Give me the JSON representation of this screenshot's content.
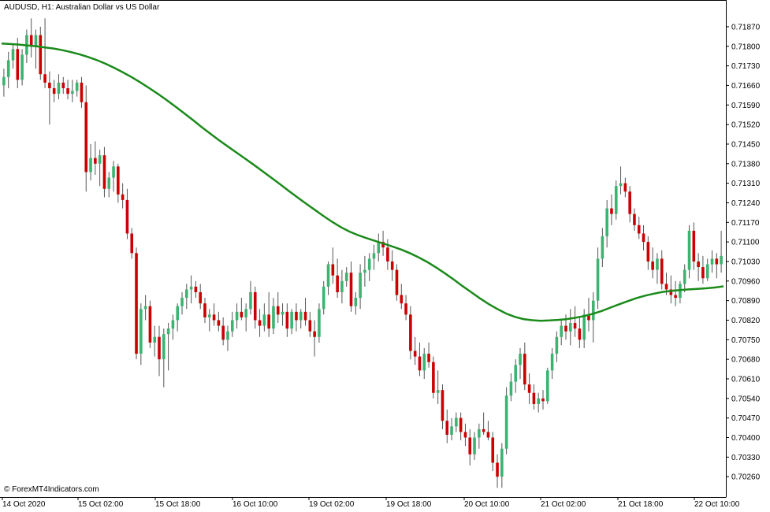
{
  "window": {
    "title": "AUDUSD, H1:  Australian Dollar vs US Dollar",
    "watermark": "© ForexMT4Indicators.com"
  },
  "colors": {
    "background": "#ffffff",
    "bull_candle": "#3cb371",
    "bear_candle": "#cc0000",
    "wick": "#555555",
    "moving_average": "#1a8a1a",
    "frame": "#000000"
  },
  "chart_data": {
    "type": "candlestick",
    "symbol": "AUDUSD",
    "timeframe": "H1",
    "ylim": [
      0.7019,
      0.7196
    ],
    "y_ticks": [
      "0.71870",
      "0.71800",
      "0.71730",
      "0.71660",
      "0.71590",
      "0.71520",
      "0.71450",
      "0.71380",
      "0.71310",
      "0.71240",
      "0.71170",
      "0.71100",
      "0.71030",
      "0.70960",
      "0.70890",
      "0.70820",
      "0.70750",
      "0.70680",
      "0.70610",
      "0.70540",
      "0.70470",
      "0.70400",
      "0.70330",
      "0.70260"
    ],
    "x_ticks": [
      "14 Oct 2020",
      "15 Oct 02:00",
      "15 Oct 18:00",
      "16 Oct 10:00",
      "19 Oct 02:00",
      "19 Oct 18:00",
      "20 Oct 10:00",
      "21 Oct 02:00",
      "21 Oct 18:00",
      "22 Oct 10:00"
    ],
    "candles": [
      [
        0.7166,
        0.7172,
        0.7162,
        0.7169
      ],
      [
        0.7169,
        0.7178,
        0.7165,
        0.7175
      ],
      [
        0.7175,
        0.7181,
        0.7172,
        0.7179
      ],
      [
        0.7179,
        0.7183,
        0.7165,
        0.7168
      ],
      [
        0.7168,
        0.7179,
        0.7166,
        0.7177
      ],
      [
        0.7177,
        0.7186,
        0.7174,
        0.7184
      ],
      [
        0.7184,
        0.719,
        0.7176,
        0.718
      ],
      [
        0.718,
        0.7186,
        0.7172,
        0.7184
      ],
      [
        0.7184,
        0.7187,
        0.7168,
        0.717
      ],
      [
        0.717,
        0.719,
        0.7165,
        0.7167
      ],
      [
        0.7167,
        0.7171,
        0.7152,
        0.7165
      ],
      [
        0.7165,
        0.7168,
        0.716,
        0.7163
      ],
      [
        0.7163,
        0.717,
        0.7161,
        0.7167
      ],
      [
        0.7167,
        0.7169,
        0.7163,
        0.7165
      ],
      [
        0.7165,
        0.7168,
        0.7161,
        0.7163
      ],
      [
        0.7163,
        0.7168,
        0.716,
        0.7164
      ],
      [
        0.7164,
        0.7168,
        0.7162,
        0.7167
      ],
      [
        0.7167,
        0.7169,
        0.7158,
        0.716
      ],
      [
        0.716,
        0.7166,
        0.7128,
        0.7135
      ],
      [
        0.7135,
        0.7145,
        0.7132,
        0.714
      ],
      [
        0.714,
        0.7146,
        0.7134,
        0.7138
      ],
      [
        0.7138,
        0.7143,
        0.713,
        0.7141
      ],
      [
        0.7141,
        0.7144,
        0.7126,
        0.7129
      ],
      [
        0.7129,
        0.7135,
        0.7126,
        0.7133
      ],
      [
        0.7133,
        0.7139,
        0.7128,
        0.7137
      ],
      [
        0.7137,
        0.7138,
        0.7124,
        0.7127
      ],
      [
        0.7127,
        0.7131,
        0.7122,
        0.7125
      ],
      [
        0.7125,
        0.7129,
        0.7111,
        0.7113
      ],
      [
        0.7113,
        0.7115,
        0.7104,
        0.7106
      ],
      [
        0.7106,
        0.7108,
        0.7068,
        0.707
      ],
      [
        0.707,
        0.7088,
        0.7066,
        0.7086
      ],
      [
        0.7086,
        0.7091,
        0.7082,
        0.7087
      ],
      [
        0.7087,
        0.7089,
        0.7072,
        0.7074
      ],
      [
        0.7074,
        0.708,
        0.7069,
        0.7076
      ],
      [
        0.7076,
        0.708,
        0.7062,
        0.7068
      ],
      [
        0.7068,
        0.7079,
        0.7058,
        0.7077
      ],
      [
        0.7077,
        0.7081,
        0.7064,
        0.7079
      ],
      [
        0.7079,
        0.7084,
        0.7075,
        0.7082
      ],
      [
        0.7082,
        0.7088,
        0.7078,
        0.7087
      ],
      [
        0.7087,
        0.7092,
        0.7084,
        0.709
      ],
      [
        0.709,
        0.7095,
        0.7086,
        0.7093
      ],
      [
        0.7093,
        0.7098,
        0.7088,
        0.7094
      ],
      [
        0.7094,
        0.7096,
        0.709,
        0.7092
      ],
      [
        0.7092,
        0.7095,
        0.7086,
        0.7088
      ],
      [
        0.7088,
        0.709,
        0.7081,
        0.7083
      ],
      [
        0.7083,
        0.7086,
        0.7078,
        0.7084
      ],
      [
        0.7084,
        0.7088,
        0.708,
        0.7082
      ],
      [
        0.7082,
        0.7085,
        0.7078,
        0.708
      ],
      [
        0.708,
        0.7083,
        0.7073,
        0.7075
      ],
      [
        0.7075,
        0.708,
        0.7071,
        0.7078
      ],
      [
        0.7078,
        0.7085,
        0.7076,
        0.7082
      ],
      [
        0.7082,
        0.7088,
        0.7079,
        0.7085
      ],
      [
        0.7085,
        0.709,
        0.7082,
        0.7083
      ],
      [
        0.7083,
        0.7088,
        0.7078,
        0.7086
      ],
      [
        0.7086,
        0.7096,
        0.7084,
        0.7092
      ],
      [
        0.7092,
        0.7094,
        0.7079,
        0.7082
      ],
      [
        0.7082,
        0.7086,
        0.7076,
        0.708
      ],
      [
        0.708,
        0.7088,
        0.7078,
        0.7084
      ],
      [
        0.7084,
        0.7092,
        0.7076,
        0.7079
      ],
      [
        0.7079,
        0.709,
        0.7077,
        0.7087
      ],
      [
        0.7087,
        0.7092,
        0.7081,
        0.7084
      ],
      [
        0.7084,
        0.7088,
        0.708,
        0.7085
      ],
      [
        0.7085,
        0.7088,
        0.7076,
        0.7079
      ],
      [
        0.7079,
        0.7086,
        0.7077,
        0.7085
      ],
      [
        0.7085,
        0.7088,
        0.7078,
        0.7082
      ],
      [
        0.7082,
        0.7086,
        0.7079,
        0.7085
      ],
      [
        0.7085,
        0.709,
        0.708,
        0.7082
      ],
      [
        0.7082,
        0.7085,
        0.7076,
        0.7078
      ],
      [
        0.7078,
        0.7082,
        0.7069,
        0.7076
      ],
      [
        0.7076,
        0.7088,
        0.7074,
        0.7086
      ],
      [
        0.7086,
        0.7096,
        0.7084,
        0.7094
      ],
      [
        0.7094,
        0.7103,
        0.7091,
        0.7102
      ],
      [
        0.7102,
        0.7108,
        0.7095,
        0.7098
      ],
      [
        0.7098,
        0.7104,
        0.709,
        0.7092
      ],
      [
        0.7092,
        0.71,
        0.7088,
        0.7096
      ],
      [
        0.7096,
        0.7101,
        0.7094,
        0.7099
      ],
      [
        0.7099,
        0.7103,
        0.7085,
        0.7087
      ],
      [
        0.7087,
        0.7092,
        0.7084,
        0.709
      ],
      [
        0.709,
        0.7102,
        0.7086,
        0.7099
      ],
      [
        0.7099,
        0.7105,
        0.7094,
        0.71
      ],
      [
        0.71,
        0.7106,
        0.7096,
        0.7104
      ],
      [
        0.7104,
        0.7109,
        0.71,
        0.7106
      ],
      [
        0.7106,
        0.7113,
        0.7103,
        0.711
      ],
      [
        0.711,
        0.7114,
        0.7105,
        0.7108
      ],
      [
        0.7108,
        0.7111,
        0.71,
        0.7103
      ],
      [
        0.7103,
        0.7107,
        0.7096,
        0.71
      ],
      [
        0.71,
        0.7102,
        0.7089,
        0.7091
      ],
      [
        0.7091,
        0.7095,
        0.7086,
        0.7088
      ],
      [
        0.7088,
        0.7091,
        0.7082,
        0.7084
      ],
      [
        0.7084,
        0.7087,
        0.7068,
        0.7071
      ],
      [
        0.7071,
        0.7076,
        0.7066,
        0.7069
      ],
      [
        0.7069,
        0.7074,
        0.7062,
        0.7064
      ],
      [
        0.7064,
        0.7072,
        0.7061,
        0.707
      ],
      [
        0.707,
        0.7074,
        0.7065,
        0.7067
      ],
      [
        0.7067,
        0.7069,
        0.7054,
        0.7056
      ],
      [
        0.7056,
        0.7064,
        0.7052,
        0.7057
      ],
      [
        0.7057,
        0.7059,
        0.7043,
        0.7046
      ],
      [
        0.7046,
        0.705,
        0.7038,
        0.7041
      ],
      [
        0.7041,
        0.7047,
        0.7039,
        0.7044
      ],
      [
        0.7044,
        0.7049,
        0.7042,
        0.7047
      ],
      [
        0.7047,
        0.7049,
        0.7039,
        0.7042
      ],
      [
        0.7042,
        0.7045,
        0.7037,
        0.704
      ],
      [
        0.704,
        0.7043,
        0.703,
        0.7034
      ],
      [
        0.7034,
        0.7042,
        0.7032,
        0.704
      ],
      [
        0.704,
        0.7045,
        0.7036,
        0.7043
      ],
      [
        0.7043,
        0.7049,
        0.7041,
        0.7042
      ],
      [
        0.7042,
        0.7046,
        0.7039,
        0.704
      ],
      [
        0.704,
        0.7042,
        0.7028,
        0.7031
      ],
      [
        0.7031,
        0.7034,
        0.7022,
        0.7026
      ],
      [
        0.7026,
        0.7038,
        0.7022,
        0.7036
      ],
      [
        0.7036,
        0.7058,
        0.7034,
        0.7055
      ],
      [
        0.7055,
        0.7063,
        0.7053,
        0.706
      ],
      [
        0.706,
        0.7068,
        0.7056,
        0.7066
      ],
      [
        0.7066,
        0.7072,
        0.7061,
        0.707
      ],
      [
        0.707,
        0.7074,
        0.7057,
        0.7059
      ],
      [
        0.7059,
        0.7063,
        0.7052,
        0.7056
      ],
      [
        0.7056,
        0.7059,
        0.705,
        0.7052
      ],
      [
        0.7052,
        0.7056,
        0.7049,
        0.7054
      ],
      [
        0.7054,
        0.7057,
        0.705,
        0.7053
      ],
      [
        0.7053,
        0.7065,
        0.7052,
        0.7064
      ],
      [
        0.7064,
        0.7072,
        0.7061,
        0.707
      ],
      [
        0.707,
        0.7078,
        0.7067,
        0.7076
      ],
      [
        0.7076,
        0.7082,
        0.7073,
        0.708
      ],
      [
        0.708,
        0.7084,
        0.7075,
        0.7078
      ],
      [
        0.7078,
        0.7086,
        0.7073,
        0.7081
      ],
      [
        0.7081,
        0.7087,
        0.7076,
        0.7079
      ],
      [
        0.7079,
        0.7083,
        0.7072,
        0.7075
      ],
      [
        0.7075,
        0.7086,
        0.7072,
        0.7084
      ],
      [
        0.7084,
        0.709,
        0.7078,
        0.7082
      ],
      [
        0.7082,
        0.7092,
        0.7074,
        0.7089
      ],
      [
        0.7089,
        0.7108,
        0.7086,
        0.7104
      ],
      [
        0.7104,
        0.7115,
        0.7101,
        0.7112
      ],
      [
        0.7112,
        0.7125,
        0.7108,
        0.7122
      ],
      [
        0.7122,
        0.7127,
        0.7116,
        0.712
      ],
      [
        0.712,
        0.7132,
        0.7118,
        0.713
      ],
      [
        0.713,
        0.7137,
        0.7127,
        0.7131
      ],
      [
        0.7131,
        0.7133,
        0.7126,
        0.7128
      ],
      [
        0.7128,
        0.713,
        0.7117,
        0.712
      ],
      [
        0.712,
        0.7122,
        0.7114,
        0.7116
      ],
      [
        0.7116,
        0.7119,
        0.7111,
        0.7113
      ],
      [
        0.7113,
        0.7116,
        0.7107,
        0.711
      ],
      [
        0.711,
        0.7112,
        0.71,
        0.7103
      ],
      [
        0.7103,
        0.7108,
        0.7097,
        0.71
      ],
      [
        0.71,
        0.7106,
        0.7095,
        0.7104
      ],
      [
        0.7104,
        0.7107,
        0.7093,
        0.7095
      ],
      [
        0.7095,
        0.7099,
        0.7091,
        0.7093
      ],
      [
        0.7093,
        0.7098,
        0.7088,
        0.7091
      ],
      [
        0.7091,
        0.7096,
        0.7087,
        0.709
      ],
      [
        0.709,
        0.7096,
        0.7088,
        0.7095
      ],
      [
        0.7095,
        0.7102,
        0.7092,
        0.71
      ],
      [
        0.71,
        0.7116,
        0.7097,
        0.7114
      ],
      [
        0.7114,
        0.7117,
        0.71,
        0.7103
      ],
      [
        0.7103,
        0.7106,
        0.7096,
        0.7101
      ],
      [
        0.7101,
        0.7105,
        0.7095,
        0.7097
      ],
      [
        0.7097,
        0.7104,
        0.7096,
        0.7102
      ],
      [
        0.7102,
        0.7107,
        0.7099,
        0.7104
      ],
      [
        0.7104,
        0.7106,
        0.7097,
        0.7102
      ],
      [
        0.7102,
        0.7114,
        0.7099,
        0.7105
      ]
    ],
    "moving_average": [
      0.7181,
      0.71808,
      0.71806,
      0.71803,
      0.718,
      0.71796,
      0.71792,
      0.71786,
      0.71779,
      0.71771,
      0.71761,
      0.7175,
      0.71737,
      0.71722,
      0.71706,
      0.71689,
      0.7167,
      0.7165,
      0.71629,
      0.71607,
      0.71584,
      0.7156,
      0.71536,
      0.71511,
      0.71487,
      0.71464,
      0.71442,
      0.7142,
      0.71398,
      0.71376,
      0.71353,
      0.7133,
      0.71307,
      0.71283,
      0.7126,
      0.71237,
      0.71215,
      0.71193,
      0.71172,
      0.71153,
      0.71137,
      0.71124,
      0.71113,
      0.71103,
      0.71093,
      0.71083,
      0.71072,
      0.71059,
      0.71044,
      0.71027,
      0.71008,
      0.70987,
      0.70965,
      0.70942,
      0.7092,
      0.70898,
      0.70878,
      0.7086,
      0.70844,
      0.70832,
      0.70824,
      0.7082,
      0.70818,
      0.70819,
      0.70821,
      0.70824,
      0.70829,
      0.70835,
      0.70843,
      0.70853,
      0.70865,
      0.70877,
      0.70888,
      0.70899,
      0.70908,
      0.70915,
      0.70921,
      0.70925,
      0.70928,
      0.7093,
      0.70932,
      0.70934,
      0.70937,
      0.70941
    ]
  }
}
